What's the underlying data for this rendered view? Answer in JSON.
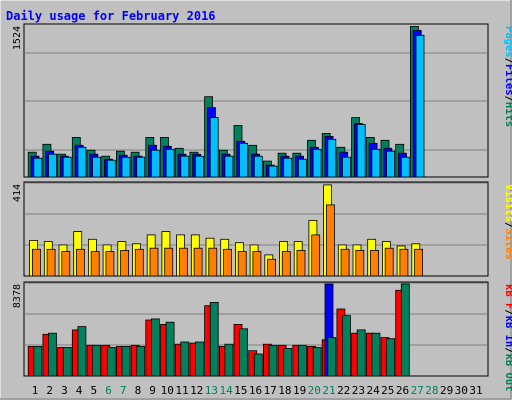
{
  "chart_data": {
    "type": "bar",
    "title": "Daily usage for February 2016",
    "colors": {
      "frame_bg": "#C0C0C0",
      "plot_bg": "#C0C0C0",
      "title": "#0000FF",
      "hits": "#00805C",
      "files": "#0000FF",
      "pages": "#00BFFF",
      "visits": "#FFFF00",
      "sites": "#FF8000",
      "kb_in": "#0000FF",
      "kb_out": "#00805C",
      "kb_f": "#FF0000",
      "weekend_label": "#00805C",
      "weekday_label": "#000000"
    },
    "x": {
      "days": [
        1,
        2,
        3,
        4,
        5,
        6,
        7,
        8,
        9,
        10,
        11,
        12,
        13,
        14,
        15,
        16,
        17,
        18,
        19,
        20,
        21,
        22,
        23,
        24,
        25,
        26,
        27,
        28,
        29,
        30,
        31
      ],
      "labels": [
        "1",
        "2",
        "3",
        "4",
        "5",
        "6",
        "7",
        "8",
        "9",
        "10",
        "11",
        "12",
        "13",
        "14",
        "15",
        "16",
        "17",
        "18",
        "19",
        "20",
        "21",
        "22",
        "23",
        "24",
        "25",
        "26",
        "27",
        "28",
        "29",
        "30",
        "31"
      ],
      "weekend_days": [
        6,
        7,
        13,
        14,
        20,
        21,
        27,
        28
      ]
    },
    "panels": [
      {
        "key": "hits_files_pages",
        "ymax": 1524,
        "ymax_label": "1524",
        "side_label": [
          {
            "text": "Pages",
            "color_key": "pages"
          },
          {
            "text": "/",
            "color_key": "weekday_label"
          },
          {
            "text": "Files",
            "color_key": "files"
          },
          {
            "text": "/",
            "color_key": "weekday_label"
          },
          {
            "text": "Hits",
            "color_key": "hits"
          }
        ],
        "series": [
          {
            "name": "Hits",
            "color_key": "hits",
            "values": [
              250,
              330,
              230,
              400,
              270,
              210,
              260,
              250,
              400,
              400,
              290,
              250,
              810,
              270,
              520,
              320,
              160,
              240,
              240,
              370,
              440,
              300,
              600,
              400,
              370,
              330,
              1520,
              0,
              0
            ]
          },
          {
            "name": "Files",
            "color_key": "files",
            "values": [
              210,
              260,
              210,
              320,
              230,
              180,
              220,
              210,
              320,
              310,
              230,
              230,
              700,
              230,
              360,
              230,
              120,
              210,
              210,
              300,
              410,
              250,
              540,
              340,
              290,
              240,
              1480,
              0,
              0
            ]
          },
          {
            "name": "Pages",
            "color_key": "pages",
            "values": [
              190,
              230,
              200,
              300,
              200,
              170,
              200,
              200,
              270,
              280,
              210,
              210,
              600,
              210,
              340,
              210,
              110,
              190,
              180,
              280,
              380,
              200,
              530,
              280,
              260,
              200,
              1430,
              0,
              0
            ]
          }
        ]
      },
      {
        "key": "visits_sites",
        "ymax": 414,
        "ymax_label": "414",
        "side_label": [
          {
            "text": "Visits",
            "color_key": "visits"
          },
          {
            "text": "/",
            "color_key": "weekday_label"
          },
          {
            "text": "Sites",
            "color_key": "sites"
          }
        ],
        "series": [
          {
            "name": "Visits",
            "color_key": "visits",
            "values": [
              160,
              155,
              140,
              200,
              165,
              140,
              155,
              145,
              185,
              200,
              185,
              185,
              170,
              165,
              150,
              140,
              95,
              155,
              155,
              250,
              410,
              140,
              140,
              165,
              155,
              135,
              145,
              0,
              0
            ]
          },
          {
            "name": "Sites",
            "color_key": "sites",
            "values": [
              120,
              120,
              110,
              120,
              110,
              110,
              115,
              120,
              125,
              125,
              125,
              125,
              125,
              120,
              110,
              110,
              75,
              110,
              115,
              185,
              320,
              120,
              115,
              115,
              125,
              120,
              120,
              0,
              0
            ]
          }
        ]
      },
      {
        "key": "kbytes",
        "ymax": 8378,
        "ymax_label": "8378",
        "side_label": [
          {
            "text": "kB F",
            "color_key": "kb_f"
          },
          {
            "text": "/",
            "color_key": "weekday_label"
          },
          {
            "text": "kB In",
            "color_key": "kb_in"
          },
          {
            "text": "/",
            "color_key": "weekday_label"
          },
          {
            "text": "kB Out",
            "color_key": "kb_out"
          }
        ],
        "series": [
          {
            "name": "kB F",
            "color_key": "kb_f",
            "values": [
              2700,
              3800,
              2600,
              4200,
              2800,
              2800,
              2700,
              2800,
              5100,
              4700,
              2900,
              3000,
              6400,
              2700,
              4700,
              2300,
              2900,
              2800,
              2800,
              2700,
              3300,
              6100,
              3900,
              3900,
              3500,
              7800,
              0,
              0,
              0
            ]
          },
          {
            "name": "kB In",
            "color_key": "kb_in",
            "values": [
              0,
              0,
              0,
              0,
              0,
              0,
              0,
              0,
              0,
              0,
              0,
              0,
              0,
              0,
              0,
              0,
              0,
              0,
              0,
              0,
              8378,
              0,
              0,
              0,
              0,
              0,
              0,
              0,
              0
            ]
          },
          {
            "name": "kB Out",
            "color_key": "kb_out",
            "values": [
              2700,
              3900,
              2600,
              4500,
              2800,
              2600,
              2700,
              2700,
              5200,
              4900,
              3100,
              3100,
              6700,
              2900,
              4300,
              2000,
              2800,
              2500,
              2800,
              2600,
              3500,
              5500,
              4200,
              3900,
              3400,
              8378,
              0,
              0,
              0
            ]
          }
        ]
      }
    ]
  }
}
